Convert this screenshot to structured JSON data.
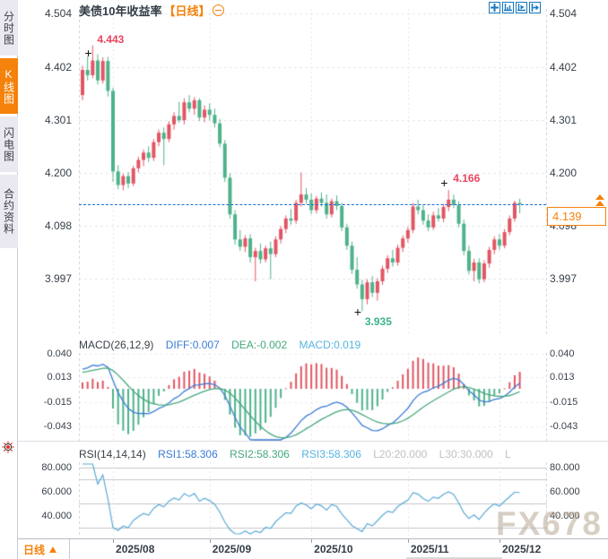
{
  "colors": {
    "up": "#e15663",
    "down": "#4eb28a",
    "diff_line": "#3a7bd5",
    "dea_line": "#45a87c",
    "rsi_line": "#5aaad6",
    "current_price_line": "#1e6fd9",
    "accent_orange": "#f5820b",
    "toolbar_blue": "#1878be",
    "axis_text": "#38404a"
  },
  "sidebar": {
    "tabs": [
      {
        "label": "分时图",
        "active": false
      },
      {
        "label": "K线图",
        "active": true
      },
      {
        "label": "闪电图",
        "active": false
      },
      {
        "label": "合约资料",
        "active": false
      }
    ]
  },
  "header": {
    "title": "美债10年收益率",
    "period_badge": "【日线】",
    "collapse_icon": "minus-circle-icon",
    "toolbar_icons": [
      "crosshair-move-icon",
      "y-axis-scale-icon",
      "x-axis-play-icon",
      "pan-right-icon"
    ]
  },
  "macd": {
    "header": [
      {
        "text": "MACD(26,12,9)"
      },
      {
        "text": "DIFF:0.007"
      },
      {
        "text": "DEA:-0.002"
      },
      {
        "text": "MACD:0.019"
      }
    ]
  },
  "rsi": {
    "header": [
      {
        "text": "RSI(14,14,14)"
      },
      {
        "text": "RSI1:58.306"
      },
      {
        "text": "RSI2:58.306"
      },
      {
        "text": "RSI3:58.306"
      },
      {
        "text": "L20:20.000"
      },
      {
        "text": "L30:30.000"
      },
      {
        "text": "L"
      }
    ]
  },
  "bottom_bar": {
    "period_label": "日线"
  },
  "watermark": {
    "text": "FX678"
  },
  "chart_data": {
    "type": "candlestick-with-indicators",
    "title": "美债10年收益率 日线",
    "current_price": "4.139",
    "main_y_axis": [
      "4.504",
      "4.402",
      "4.301",
      "4.200",
      "4.098",
      "3.997"
    ],
    "macd_y_axis": [
      "0.040",
      "0.013",
      "-0.015",
      "-0.043"
    ],
    "rsi_y_axis": [
      "80.000",
      "60.000",
      "40.000"
    ],
    "rsi_gridlines": [
      80,
      70,
      50,
      30
    ],
    "x_axis": [
      {
        "label": "2025/08",
        "index": 6
      },
      {
        "label": "2025/09",
        "index": 25
      },
      {
        "label": "2025/10",
        "index": 45
      },
      {
        "label": "2025/11",
        "index": 64
      },
      {
        "label": "2025/12",
        "index": 82
      }
    ],
    "annotations": {
      "high": {
        "value": "4.443",
        "index": 2
      },
      "low": {
        "value": "3.935",
        "index": 55
      },
      "swing_high": {
        "value": "4.166",
        "index": 72
      }
    },
    "candles": [
      [
        4.348,
        4.404,
        4.338,
        4.396
      ],
      [
        4.396,
        4.422,
        4.376,
        4.386
      ],
      [
        4.386,
        4.443,
        4.38,
        4.414
      ],
      [
        4.414,
        4.426,
        4.368,
        4.376
      ],
      [
        4.376,
        4.42,
        4.37,
        4.413
      ],
      [
        4.413,
        4.421,
        4.345,
        4.356
      ],
      [
        4.356,
        4.362,
        4.182,
        4.202
      ],
      [
        4.202,
        4.214,
        4.168,
        4.176
      ],
      [
        4.176,
        4.198,
        4.166,
        4.193
      ],
      [
        4.193,
        4.201,
        4.17,
        4.179
      ],
      [
        4.179,
        4.213,
        4.174,
        4.208
      ],
      [
        4.208,
        4.23,
        4.2,
        4.224
      ],
      [
        4.224,
        4.244,
        4.212,
        4.238
      ],
      [
        4.238,
        4.25,
        4.22,
        4.228
      ],
      [
        4.228,
        4.264,
        4.222,
        4.258
      ],
      [
        4.258,
        4.282,
        4.25,
        4.276
      ],
      [
        4.276,
        4.286,
        4.214,
        4.264
      ],
      [
        4.264,
        4.298,
        4.258,
        4.292
      ],
      [
        4.292,
        4.315,
        4.282,
        4.308
      ],
      [
        4.308,
        4.335,
        4.295,
        4.3
      ],
      [
        4.3,
        4.342,
        4.292,
        4.334
      ],
      [
        4.334,
        4.348,
        4.315,
        4.322
      ],
      [
        4.322,
        4.344,
        4.31,
        4.338
      ],
      [
        4.338,
        4.342,
        4.298,
        4.305
      ],
      [
        4.305,
        4.328,
        4.296,
        4.32
      ],
      [
        4.32,
        4.332,
        4.3,
        4.31
      ],
      [
        4.31,
        4.322,
        4.286,
        4.294
      ],
      [
        4.294,
        4.302,
        4.248,
        4.255
      ],
      [
        4.255,
        4.262,
        4.182,
        4.19
      ],
      [
        4.19,
        4.198,
        4.112,
        4.12
      ],
      [
        4.12,
        4.128,
        4.062,
        4.072
      ],
      [
        4.072,
        4.09,
        4.05,
        4.058
      ],
      [
        4.058,
        4.08,
        4.048,
        4.074
      ],
      [
        4.074,
        4.082,
        4.028,
        4.038
      ],
      [
        4.038,
        4.056,
        3.992,
        4.05
      ],
      [
        4.05,
        4.064,
        4.026,
        4.034
      ],
      [
        4.034,
        4.06,
        4.028,
        4.055
      ],
      [
        4.055,
        4.068,
        3.996,
        4.044
      ],
      [
        4.044,
        4.078,
        4.038,
        4.072
      ],
      [
        4.072,
        4.098,
        4.064,
        4.092
      ],
      [
        4.092,
        4.118,
        4.084,
        4.112
      ],
      [
        4.112,
        4.13,
        4.1,
        4.108
      ],
      [
        4.108,
        4.148,
        4.102,
        4.142
      ],
      [
        4.142,
        4.2,
        4.135,
        4.158
      ],
      [
        4.158,
        4.17,
        4.14,
        4.148
      ],
      [
        4.148,
        4.16,
        4.12,
        4.128
      ],
      [
        4.128,
        4.155,
        4.122,
        4.15
      ],
      [
        4.15,
        4.162,
        4.135,
        4.142
      ],
      [
        4.142,
        4.158,
        4.112,
        4.12
      ],
      [
        4.12,
        4.15,
        4.114,
        4.145
      ],
      [
        4.145,
        4.156,
        4.128,
        4.136
      ],
      [
        4.136,
        4.142,
        4.088,
        4.095
      ],
      [
        4.095,
        4.102,
        4.052,
        4.06
      ],
      [
        4.06,
        4.068,
        4.006,
        4.014
      ],
      [
        4.014,
        4.038,
        3.978,
        3.986
      ],
      [
        3.986,
        3.995,
        3.935,
        3.958
      ],
      [
        3.958,
        3.996,
        3.948,
        3.99
      ],
      [
        3.99,
        4.002,
        3.962,
        3.97
      ],
      [
        3.97,
        3.998,
        3.955,
        3.992
      ],
      [
        3.992,
        4.022,
        3.985,
        4.016
      ],
      [
        4.016,
        4.042,
        4.008,
        4.036
      ],
      [
        4.036,
        4.052,
        4.02,
        4.028
      ],
      [
        4.028,
        4.062,
        4.022,
        4.056
      ],
      [
        4.056,
        4.08,
        4.048,
        4.074
      ],
      [
        4.074,
        4.096,
        4.066,
        4.09
      ],
      [
        4.09,
        4.142,
        4.084,
        4.135
      ],
      [
        4.135,
        4.148,
        4.12,
        4.128
      ],
      [
        4.128,
        4.138,
        4.1,
        4.108
      ],
      [
        4.108,
        4.12,
        4.088,
        4.095
      ],
      [
        4.095,
        4.125,
        4.09,
        4.118
      ],
      [
        4.118,
        4.132,
        4.106,
        4.112
      ],
      [
        4.112,
        4.14,
        4.105,
        4.134
      ],
      [
        4.134,
        4.166,
        4.126,
        4.148
      ],
      [
        4.148,
        4.158,
        4.132,
        4.138
      ],
      [
        4.138,
        4.145,
        4.095,
        4.102
      ],
      [
        4.102,
        4.11,
        4.042,
        4.05
      ],
      [
        4.05,
        4.06,
        4.005,
        4.012
      ],
      [
        4.012,
        4.035,
        3.992,
        4.028
      ],
      [
        4.028,
        4.036,
        3.988,
        3.996
      ],
      [
        3.996,
        4.032,
        3.99,
        4.026
      ],
      [
        4.026,
        4.058,
        4.018,
        4.052
      ],
      [
        4.052,
        4.078,
        4.044,
        4.072
      ],
      [
        4.072,
        4.082,
        4.052,
        4.06
      ],
      [
        4.06,
        4.092,
        4.055,
        4.086
      ],
      [
        4.086,
        4.118,
        4.08,
        4.112
      ],
      [
        4.112,
        4.146,
        4.106,
        4.142
      ],
      [
        4.142,
        4.15,
        4.122,
        4.139
      ]
    ]
  }
}
